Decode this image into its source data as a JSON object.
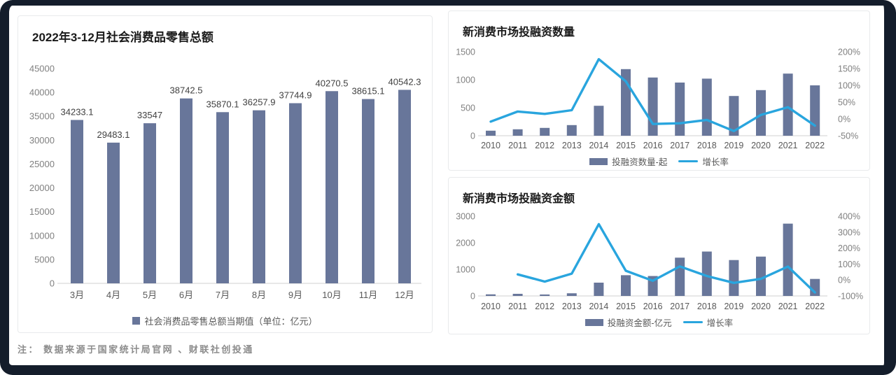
{
  "note": "注： 数据来源于国家统计局官网 、财联社创投通",
  "palette": {
    "bar": "#68769a",
    "line": "#29a5de",
    "axis_line": "#d9d9d9",
    "tick_text": "#808080",
    "category_text": "#595959",
    "title_text": "#1a1a1a",
    "data_label_text": "#404040",
    "note_text": "#8c8c8c",
    "card_border": "#e8eaec",
    "frame": "#141d2b"
  },
  "chart_data": [
    {
      "id": "retail",
      "type": "bar",
      "title": "2022年3-12月社会消费品零售总额",
      "categories": [
        "3月",
        "4月",
        "5月",
        "6月",
        "7月",
        "8月",
        "9月",
        "10月",
        "11月",
        "12月"
      ],
      "series": [
        {
          "name": "社会消费品零售总额当期值（单位：亿元）",
          "type": "bar",
          "axis": "left",
          "values": [
            34233.1,
            29483.1,
            33547,
            38742.5,
            35870.1,
            36257.9,
            37744.9,
            40270.5,
            38615.1,
            40542.3
          ]
        }
      ],
      "data_labels": [
        "34233.1",
        "29483.1",
        "33547",
        "38742.5",
        "35870.1",
        "36257.9",
        "37744.9",
        "40270.5",
        "38615.1",
        "40542.3"
      ],
      "left_axis": {
        "lim": [
          0,
          45000
        ],
        "ticks": [
          0,
          5000,
          10000,
          15000,
          20000,
          25000,
          30000,
          35000,
          40000,
          45000
        ]
      },
      "xlabel": "",
      "ylabel": "",
      "grid": false,
      "legend_position": "bottom"
    },
    {
      "id": "count",
      "type": "bar+line",
      "title": "新消费市场投融资数量",
      "categories": [
        "2010",
        "2011",
        "2012",
        "2013",
        "2014",
        "2015",
        "2016",
        "2017",
        "2018",
        "2019",
        "2020",
        "2021",
        "2022"
      ],
      "series": [
        {
          "name": "投融资数量-起",
          "type": "bar",
          "axis": "left",
          "values": [
            90,
            115,
            140,
            190,
            535,
            1190,
            1040,
            950,
            1020,
            710,
            815,
            1110,
            900
          ]
        },
        {
          "name": "增长率",
          "type": "line",
          "axis": "right",
          "unit": "%",
          "values": [
            -8,
            22,
            15,
            26,
            178,
            112,
            -15,
            -13,
            -3,
            -36,
            12,
            35,
            -20
          ]
        }
      ],
      "left_axis": {
        "lim": [
          0,
          1500
        ],
        "ticks": [
          0,
          500,
          1000,
          1500
        ]
      },
      "right_axis": {
        "lim": [
          -50,
          200
        ],
        "ticks": [
          -50,
          0,
          50,
          100,
          150,
          200
        ],
        "suffix": "%"
      },
      "xlabel": "",
      "ylabel": "",
      "grid": false,
      "legend_position": "bottom"
    },
    {
      "id": "amount",
      "type": "bar+line",
      "title": "新消费市场投融资金额",
      "categories": [
        "2010",
        "2011",
        "2012",
        "2013",
        "2014",
        "2015",
        "2016",
        "2017",
        "2018",
        "2019",
        "2020",
        "2021",
        "2022"
      ],
      "series": [
        {
          "name": "投融资金额-亿元",
          "type": "bar",
          "axis": "left",
          "values": [
            60,
            80,
            55,
            100,
            500,
            780,
            750,
            1440,
            1670,
            1350,
            1480,
            2720,
            640
          ]
        },
        {
          "name": "增长率",
          "type": "line",
          "axis": "right",
          "unit": "%",
          "values": [
            null,
            35,
            -10,
            40,
            350,
            58,
            -5,
            85,
            25,
            -18,
            7,
            84,
            -78
          ]
        }
      ],
      "left_axis": {
        "lim": [
          0,
          3000
        ],
        "ticks": [
          0,
          1000,
          2000,
          3000
        ]
      },
      "right_axis": {
        "lim": [
          -100,
          400
        ],
        "ticks": [
          -100,
          0,
          100,
          200,
          300,
          400
        ],
        "suffix": "%"
      },
      "xlabel": "",
      "ylabel": "",
      "grid": false,
      "legend_position": "bottom"
    }
  ]
}
